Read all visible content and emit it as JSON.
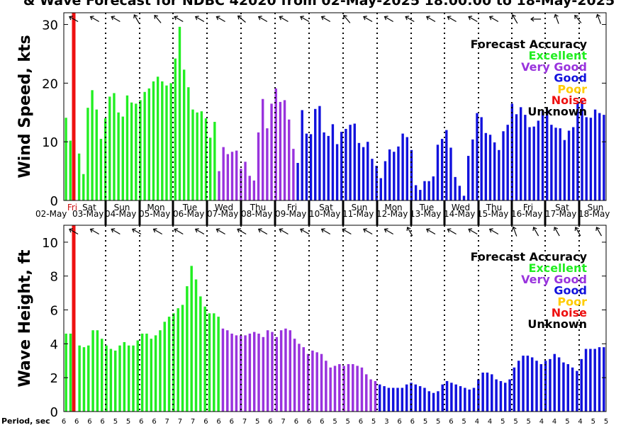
{
  "title": "& Wave Forecast for NDBC 42020 from 02-May-2025 18:00:00 to 18-May-2025",
  "period_label": "Period, sec",
  "legend": {
    "title": "Forecast Accuracy",
    "items": [
      {
        "label": "Excellent",
        "color": "#22ee22"
      },
      {
        "label": "Very Good",
        "color": "#9933dd"
      },
      {
        "label": "Good",
        "color": "#1111dd"
      },
      {
        "label": "Poor",
        "color": "#ffcc00"
      },
      {
        "label": "Noise",
        "color": "#ee1111"
      },
      {
        "label": "Unknown",
        "color": "#000000"
      }
    ]
  },
  "colors": {
    "excellent": "#22ee22",
    "very_good": "#9933dd",
    "good": "#1111dd",
    "now_marker": "#ee1111"
  },
  "day_labels": [
    "Fri",
    "Sat",
    "Sun",
    "Mon",
    "Tue",
    "Wed",
    "Thu",
    "Fri",
    "Sat",
    "Sun",
    "Mon",
    "Tue",
    "Wed",
    "Thu",
    "Fri",
    "Sat",
    "Sun"
  ],
  "date_labels": [
    "02-May",
    "03-May",
    "04-May",
    "05-May",
    "06-May",
    "07-May",
    "08-May",
    "09-May",
    "10-May",
    "11-May",
    "12-May",
    "13-May",
    "14-May",
    "15-May",
    "16-May",
    "17-May",
    "18-May"
  ],
  "chart_data": [
    {
      "type": "bar",
      "ylabel": "Wind Speed, kts",
      "ylim": [
        0,
        32
      ],
      "yticks": [
        0,
        10,
        20,
        30
      ],
      "grid": "vertical dotted day lines",
      "legend_position": "top-right",
      "segments": [
        {
          "accuracy": "excellent",
          "values": [
            14.1,
            10.2,
            0,
            8.0,
            4.5,
            15.8,
            18.8,
            15.5,
            10.5,
            14.0,
            17.7,
            18.3,
            15.0,
            14.3,
            17.9,
            16.7,
            16.5,
            17.1,
            18.5,
            19.1,
            20.3,
            21.1,
            20.3,
            19.6,
            20.0,
            24.2,
            29.6,
            22.3,
            19.3,
            15.5,
            15.0,
            15.2,
            14.0,
            10.7,
            13.4
          ]
        },
        {
          "accuracy": "very_good",
          "values": [
            5.0,
            9.1,
            7.9,
            8.3,
            8.5,
            5.4,
            6.6,
            4.2,
            3.4,
            11.6,
            17.3,
            12.3,
            16.5,
            19.1,
            16.8,
            17.1,
            13.8,
            8.8
          ]
        },
        {
          "accuracy": "good",
          "values": [
            6.4,
            15.4,
            11.4,
            11.3,
            15.6,
            16.1,
            11.6,
            11.0,
            13.0,
            9.6,
            11.7,
            12.2,
            12.9,
            13.1,
            9.8,
            9.1,
            10.0,
            7.1,
            5.9,
            3.8,
            6.7,
            8.7,
            8.3,
            9.2,
            11.4,
            10.8,
            8.6,
            2.6,
            1.8,
            3.3,
            3.3,
            4.1,
            9.5,
            10.5,
            12.0,
            9.0,
            4.0,
            2.5,
            0.8,
            7.6,
            10.4,
            14.9,
            14.2,
            11.5,
            11.2,
            9.9,
            8.6,
            11.8,
            12.9,
            16.5,
            14.7,
            15.9,
            14.6,
            12.5,
            12.6,
            13.6,
            15.2,
            15.5,
            12.9,
            12.4,
            12.3,
            10.3,
            11.9,
            12.5,
            16.6,
            16.9,
            14.2,
            14.1,
            15.5,
            14.9,
            14.6
          ]
        }
      ]
    },
    {
      "type": "bar",
      "ylabel": "Wave Height, ft",
      "ylim": [
        0,
        11
      ],
      "yticks": [
        0,
        2,
        4,
        6,
        8,
        10
      ],
      "grid": "vertical dotted day lines",
      "legend_position": "top-right",
      "segments": [
        {
          "accuracy": "excellent",
          "values": [
            4.6,
            4.6,
            0,
            3.9,
            3.8,
            3.9,
            4.8,
            4.8,
            4.3,
            3.9,
            3.7,
            3.6,
            3.9,
            4.1,
            3.9,
            3.9,
            4.2,
            4.6,
            4.6,
            4.3,
            4.5,
            4.8,
            5.3,
            5.6,
            5.8,
            6.1,
            6.3,
            7.4,
            8.6,
            7.8,
            6.8,
            6.2,
            5.8,
            5.8,
            5.6
          ]
        },
        {
          "accuracy": "very_good",
          "values": [
            4.9,
            4.8,
            4.6,
            4.5,
            4.5,
            4.5,
            4.6,
            4.7,
            4.6,
            4.4,
            4.8,
            4.7,
            4.4,
            4.8,
            4.9,
            4.8,
            4.3,
            4.0,
            3.8,
            3.4,
            3.6,
            3.5,
            3.4,
            3.0,
            2.6,
            2.7,
            2.8,
            2.7,
            2.8,
            2.8,
            2.7,
            2.6,
            2.2,
            1.9,
            1.8
          ]
        },
        {
          "accuracy": "good",
          "values": [
            1.6,
            1.5,
            1.4,
            1.4,
            1.4,
            1.4,
            1.6,
            1.7,
            1.6,
            1.5,
            1.4,
            1.2,
            1.1,
            1.2,
            1.6,
            1.8,
            1.7,
            1.6,
            1.5,
            1.4,
            1.3,
            1.4,
            1.9,
            2.3,
            2.3,
            2.2,
            1.9,
            1.8,
            1.7,
            1.9,
            2.6,
            3.0,
            3.3,
            3.3,
            3.2,
            3.0,
            2.8,
            3.0,
            3.1,
            3.4,
            3.2,
            2.9,
            2.8,
            2.6,
            2.4,
            3.1,
            3.7,
            3.7,
            3.7,
            3.8,
            3.8
          ]
        }
      ]
    }
  ],
  "wind_directions_deg": [
    300,
    300,
    300,
    330,
    320,
    300,
    300,
    300,
    310,
    300,
    300,
    300,
    300,
    320,
    300,
    300,
    300,
    300,
    300,
    300,
    300,
    330,
    270,
    340,
    320,
    340
  ],
  "wave_directions_deg": [
    300,
    300,
    300,
    300,
    300,
    300,
    300,
    300,
    300,
    300,
    300,
    300,
    300,
    300,
    300,
    300,
    330,
    300,
    300,
    300,
    300,
    340,
    330,
    330,
    330,
    330
  ],
  "periods_sec": [
    6,
    6,
    6,
    6,
    5,
    5,
    6,
    6,
    7,
    7,
    7,
    6,
    6,
    6,
    7,
    5,
    6,
    7,
    6,
    6,
    6,
    5,
    5,
    6,
    5,
    3,
    6,
    6,
    5,
    5,
    6,
    5,
    4,
    4,
    5,
    5,
    5,
    4,
    4,
    5,
    4,
    5,
    5
  ]
}
